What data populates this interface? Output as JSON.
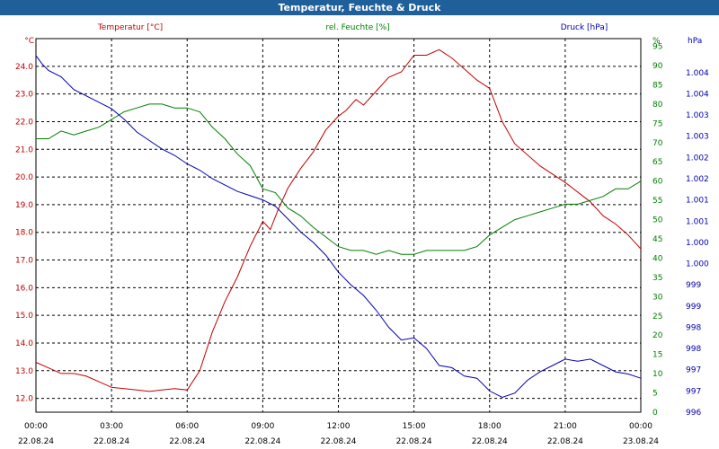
{
  "window": {
    "title": "Temperatur, Feuchte & Druck"
  },
  "colors": {
    "temperature": "#c00000",
    "humidity": "#008000",
    "pressure": "#0000b0",
    "titlebar": "#1f5f9a"
  },
  "chart_data": {
    "type": "line",
    "title": "Temperatur, Feuchte & Druck",
    "grid": true,
    "x": {
      "ticks": [
        {
          "time": "00:00",
          "date": "22.08.24"
        },
        {
          "time": "03:00",
          "date": "22.08.24"
        },
        {
          "time": "06:00",
          "date": "22.08.24"
        },
        {
          "time": "09:00",
          "date": "22.08.24"
        },
        {
          "time": "12:00",
          "date": "22.08.24"
        },
        {
          "time": "15:00",
          "date": "22.08.24"
        },
        {
          "time": "18:00",
          "date": "22.08.24"
        },
        {
          "time": "21:00",
          "date": "22.08.24"
        },
        {
          "time": "00:00",
          "date": "23.08.24"
        }
      ],
      "range_hours": [
        0,
        24
      ]
    },
    "axes": {
      "temperature": {
        "label": "Temperatur [°C]",
        "unit": "°C",
        "range": [
          11.5,
          25.0
        ],
        "ticks": [
          "12.0",
          "13.0",
          "14.0",
          "15.0",
          "16.0",
          "17.0",
          "18.0",
          "19.0",
          "20.0",
          "21.0",
          "22.0",
          "23.0",
          "24.0"
        ]
      },
      "humidity": {
        "label": "rel. Feuchte [%]",
        "unit": "%",
        "range": [
          0,
          97
        ],
        "ticks": [
          "0",
          "5",
          "10",
          "15",
          "20",
          "25",
          "30",
          "35",
          "40",
          "45",
          "50",
          "55",
          "60",
          "65",
          "70",
          "75",
          "80",
          "85",
          "90",
          "95"
        ]
      },
      "pressure": {
        "label": "Druck [hPa]",
        "unit": "hPa",
        "range": [
          996,
          1004.8
        ],
        "ticks": [
          "996",
          "997",
          "997",
          "998",
          "998",
          "999",
          "999",
          "1.000",
          "1.000",
          "1.001",
          "1.001",
          "1.002",
          "1.002",
          "1.003",
          "1.003",
          "1.004",
          "1.004"
        ]
      }
    },
    "series": [
      {
        "name": "Temperatur [°C]",
        "axis": "temperature",
        "x": [
          0,
          0.5,
          1,
          1.5,
          2,
          2.5,
          3,
          3.5,
          4,
          4.5,
          5,
          5.5,
          6,
          6.5,
          7,
          7.5,
          8,
          8.5,
          9,
          9.3,
          9.6,
          10,
          10.5,
          11,
          11.5,
          12,
          12.3,
          12.7,
          13,
          13.5,
          14,
          14.5,
          15,
          15.5,
          16,
          16.5,
          17,
          17.5,
          18,
          18.5,
          19,
          20,
          21,
          22,
          22.5,
          23,
          23.5,
          24
        ],
        "values": [
          13.3,
          13.1,
          12.9,
          12.9,
          12.8,
          12.6,
          12.4,
          12.35,
          12.3,
          12.25,
          12.3,
          12.35,
          12.3,
          13.0,
          14.4,
          15.5,
          16.4,
          17.5,
          18.4,
          18.1,
          18.8,
          19.6,
          20.3,
          20.9,
          21.7,
          22.2,
          22.4,
          22.8,
          22.6,
          23.1,
          23.6,
          23.8,
          24.4,
          24.4,
          24.6,
          24.3,
          23.9,
          23.5,
          23.2,
          22.0,
          21.2,
          20.4,
          19.8,
          19.1,
          18.6,
          18.3,
          17.9,
          17.4
        ]
      },
      {
        "name": "rel. Feuchte [%]",
        "axis": "humidity",
        "x": [
          0,
          0.5,
          1,
          1.5,
          2,
          2.5,
          3,
          3.5,
          4,
          4.5,
          5,
          5.5,
          6,
          6.5,
          7,
          7.5,
          8,
          8.5,
          9,
          9.5,
          10,
          10.5,
          11,
          12,
          12.5,
          13,
          13.5,
          14,
          14.5,
          15,
          15.5,
          16,
          16.5,
          17,
          17.5,
          18,
          18.5,
          19,
          19.5,
          20,
          20.5,
          21,
          21.5,
          22,
          22.5,
          23,
          23.5,
          24
        ],
        "values": [
          71,
          71,
          73,
          72,
          73,
          74,
          76,
          78,
          79,
          80,
          80,
          79,
          79,
          78,
          74,
          71,
          67,
          64,
          58,
          57,
          53,
          51,
          48,
          43,
          42,
          42,
          41,
          42,
          41,
          41,
          42,
          42,
          42,
          42,
          43,
          46,
          48,
          50,
          51,
          52,
          53,
          54,
          54,
          55,
          56,
          58,
          58,
          60
        ]
      },
      {
        "name": "Druck [hPa]",
        "axis": "pressure",
        "x": [
          0,
          0.25,
          0.5,
          1,
          1.5,
          2,
          2.5,
          3,
          3.5,
          4,
          4.5,
          5,
          5.5,
          6,
          6.5,
          7,
          7.5,
          8,
          8.5,
          9,
          9.5,
          10,
          10.5,
          11,
          11.5,
          12,
          12.5,
          13,
          13.5,
          14,
          14.5,
          15,
          15.5,
          16,
          16.5,
          17,
          17.5,
          18,
          18.5,
          19,
          19.5,
          20,
          20.5,
          21,
          21.5,
          22,
          22.5,
          23,
          23.5,
          24
        ],
        "values": [
          1004.4,
          1004.2,
          1004.05,
          1003.9,
          1003.6,
          1003.45,
          1003.3,
          1003.15,
          1002.9,
          1002.6,
          1002.4,
          1002.2,
          1002.05,
          1001.85,
          1001.7,
          1001.5,
          1001.35,
          1001.2,
          1001.1,
          1001.0,
          1000.85,
          1000.55,
          1000.25,
          1000.0,
          999.7,
          999.3,
          999.0,
          998.75,
          998.4,
          998.0,
          997.7,
          997.75,
          997.5,
          997.1,
          997.05,
          996.85,
          996.8,
          996.5,
          996.35,
          996.45,
          996.75,
          996.95,
          997.1,
          997.25,
          997.2,
          997.25,
          997.1,
          996.95,
          996.9,
          996.8
        ]
      }
    ]
  }
}
